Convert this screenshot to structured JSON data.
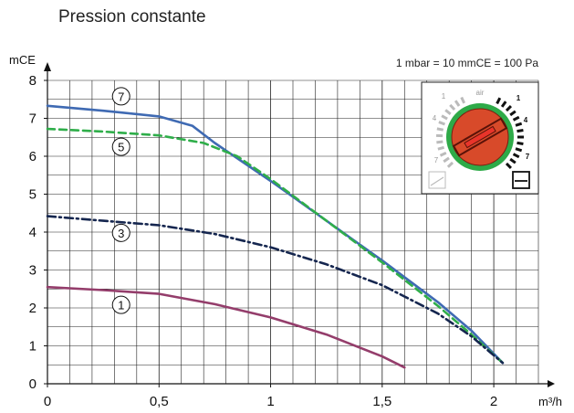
{
  "chart_data": {
    "type": "line",
    "title": "Pression constante",
    "xlabel": "m³/h",
    "ylabel": "mCE",
    "note": "1 mbar = 10 mmCE = 100 Pa",
    "xlim": [
      0,
      2.2
    ],
    "ylim": [
      0,
      8
    ],
    "x_ticks": [
      "0",
      "0,5",
      "1",
      "1,5",
      "2"
    ],
    "x_tick_values": [
      0,
      0.5,
      1,
      1.5,
      2
    ],
    "y_ticks": [
      "0",
      "1",
      "2",
      "3",
      "4",
      "5",
      "6",
      "7",
      "8"
    ],
    "grid": true,
    "series": [
      {
        "name": "7",
        "color": "#3f6ab3",
        "style": "solid",
        "points": [
          [
            0,
            7.33
          ],
          [
            0.25,
            7.2
          ],
          [
            0.5,
            7.05
          ],
          [
            0.65,
            6.8
          ],
          [
            0.75,
            6.35
          ],
          [
            1.0,
            5.35
          ],
          [
            1.25,
            4.3
          ],
          [
            1.5,
            3.25
          ],
          [
            1.75,
            2.15
          ],
          [
            1.9,
            1.4
          ],
          [
            2.04,
            0.55
          ]
        ]
      },
      {
        "name": "5",
        "color": "#2fae4a",
        "style": "dashed",
        "points": [
          [
            0,
            6.72
          ],
          [
            0.25,
            6.65
          ],
          [
            0.5,
            6.55
          ],
          [
            0.7,
            6.35
          ],
          [
            0.85,
            6.0
          ],
          [
            1.0,
            5.4
          ],
          [
            1.25,
            4.3
          ],
          [
            1.5,
            3.2
          ],
          [
            1.75,
            2.05
          ],
          [
            1.9,
            1.3
          ],
          [
            2.04,
            0.55
          ]
        ]
      },
      {
        "name": "3",
        "color": "#15264f",
        "style": "dashdot",
        "points": [
          [
            0,
            4.42
          ],
          [
            0.25,
            4.3
          ],
          [
            0.5,
            4.18
          ],
          [
            0.75,
            3.95
          ],
          [
            1.0,
            3.6
          ],
          [
            1.25,
            3.15
          ],
          [
            1.5,
            2.6
          ],
          [
            1.75,
            1.85
          ],
          [
            1.9,
            1.25
          ],
          [
            2.04,
            0.55
          ]
        ]
      },
      {
        "name": "1",
        "color": "#943d6b",
        "style": "solid",
        "points": [
          [
            0,
            2.55
          ],
          [
            0.25,
            2.47
          ],
          [
            0.5,
            2.37
          ],
          [
            0.75,
            2.1
          ],
          [
            1.0,
            1.75
          ],
          [
            1.25,
            1.3
          ],
          [
            1.5,
            0.72
          ],
          [
            1.6,
            0.43
          ]
        ]
      }
    ],
    "series_label_positions": [
      [
        0.33,
        7.58
      ],
      [
        0.33,
        6.25
      ],
      [
        0.33,
        3.98
      ],
      [
        0.33,
        2.08
      ]
    ]
  },
  "inset": {
    "left_marks": [
      "1",
      "4",
      "7"
    ],
    "right_marks": [
      "1",
      "4",
      "7"
    ],
    "dial_label": "air",
    "colors": {
      "ring": "#2eaa48",
      "knob": "#d84a2a",
      "slot": "#e8342a"
    }
  }
}
